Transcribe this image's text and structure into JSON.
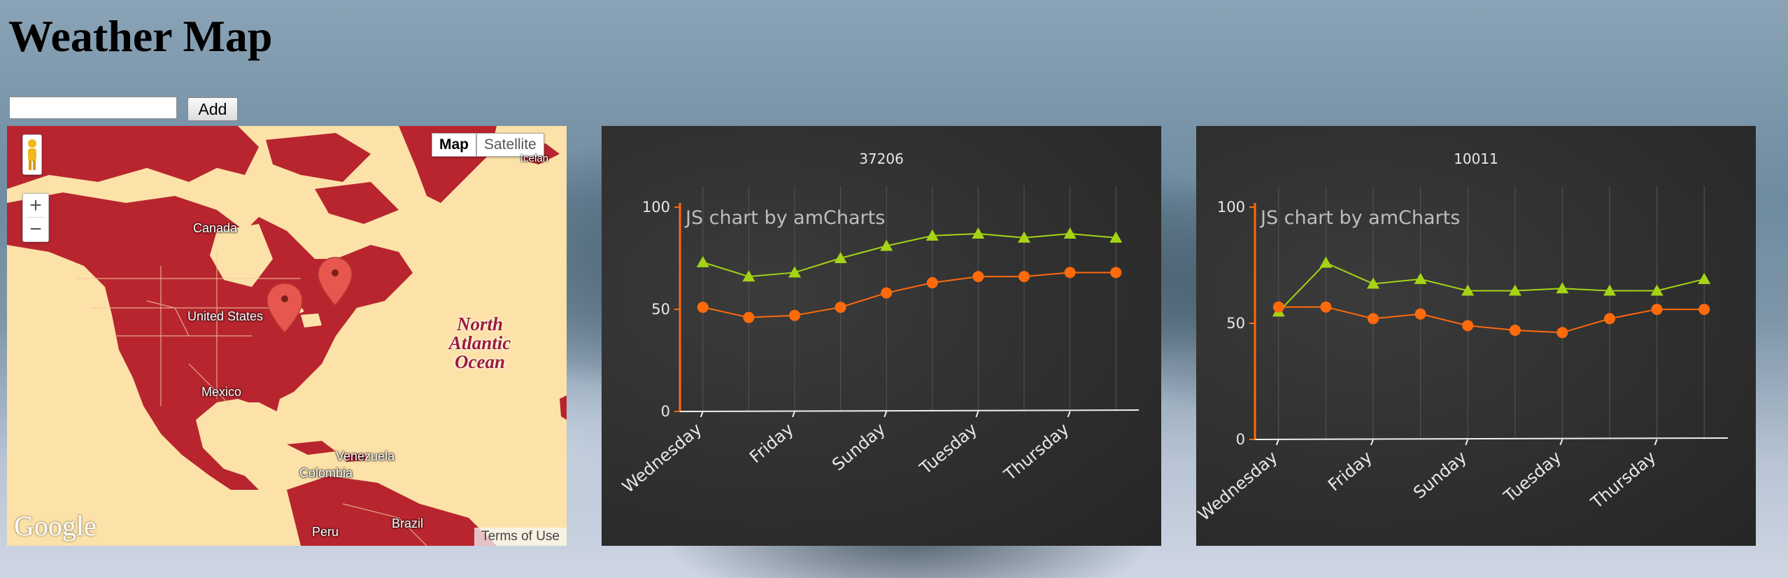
{
  "page": {
    "title": "Weather Map",
    "add_button": "Add",
    "search_value": ""
  },
  "map": {
    "maptype": {
      "map": "Map",
      "satellite": "Satellite"
    },
    "zoom_in": "+",
    "zoom_out": "−",
    "labels": {
      "canada": "Canada",
      "united_states": "United States",
      "mexico": "Mexico",
      "venezuela": "Venezuela",
      "colombia": "Colombia",
      "brazil": "Brazil",
      "peru": "Peru",
      "iceland": "Icelan"
    },
    "ocean_label": [
      "North",
      "Atlantic",
      "Ocean"
    ],
    "google": "Google",
    "terms": "Terms of Use",
    "colors": {
      "land": "#b8252f",
      "water": "#fce2a8",
      "marker": "#e8574f"
    }
  },
  "charts": [
    {
      "title": "37206",
      "watermark": "JS chart by amCharts",
      "chart_data": {
        "type": "line",
        "categories": [
          "Wednesday",
          "",
          "Friday",
          "",
          "Sunday",
          "",
          "Tuesday",
          "",
          "Thursday",
          ""
        ],
        "series": [
          {
            "values": [
              73,
              66,
              68,
              75,
              81,
              86,
              87,
              85,
              87,
              85
            ],
            "color": "#a5d415",
            "marker": "triangle"
          },
          {
            "values": [
              51,
              46,
              47,
              51,
              58,
              63,
              66,
              66,
              68,
              68
            ],
            "color": "#ff6a0a",
            "marker": "circle"
          }
        ],
        "ylim": [
          0,
          100
        ],
        "yticks": [
          "0",
          "50",
          "100"
        ]
      }
    },
    {
      "title": "10011",
      "watermark": "JS chart by amCharts",
      "chart_data": {
        "type": "line",
        "categories": [
          "Wednesday",
          "",
          "Friday",
          "",
          "Sunday",
          "",
          "Tuesday",
          "",
          "Thursday",
          ""
        ],
        "series": [
          {
            "values": [
              55,
              76,
              67,
              69,
              64,
              64,
              65,
              64,
              64,
              69
            ],
            "color": "#a5d415",
            "marker": "triangle"
          },
          {
            "values": [
              57,
              57,
              52,
              54,
              49,
              47,
              46,
              52,
              56,
              56
            ],
            "color": "#ff6a0a",
            "marker": "circle"
          }
        ],
        "ylim": [
          0,
          100
        ],
        "yticks": [
          "0",
          "50",
          "100"
        ]
      }
    }
  ]
}
